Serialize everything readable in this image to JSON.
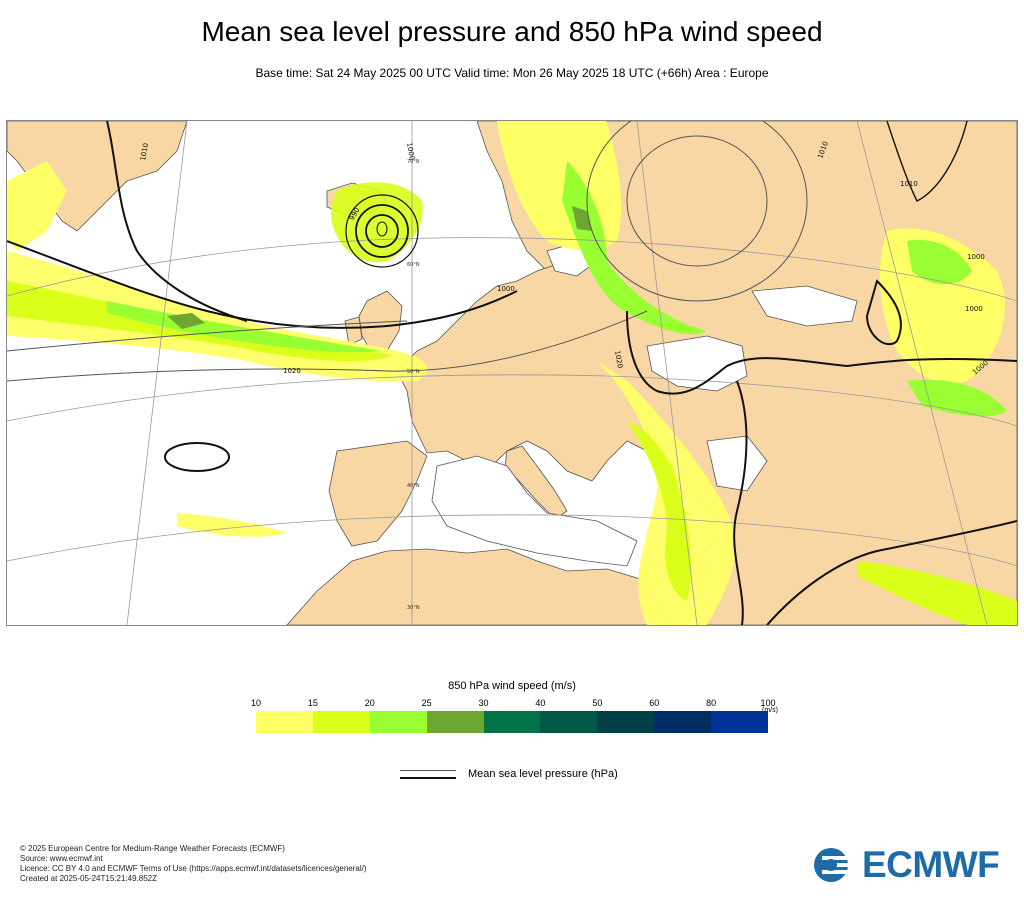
{
  "header": {
    "title": "Mean sea level pressure and 850 hPa wind speed",
    "subtitle": "Base time: Sat 24 May 2025 00 UTC Valid time: Mon 26 May 2025 18 UTC (+66h) Area : Europe"
  },
  "map": {
    "area": "Europe",
    "colors": {
      "land": "#f9d7a4",
      "sea": "#ffffff",
      "coast": "#555555",
      "graticule": "#9a9a9a",
      "isobar": "#111111"
    },
    "isobar_labels": [
      "1010",
      "1000",
      "990",
      "1020",
      "1000",
      "1020",
      "1010",
      "1010",
      "1000",
      "1000",
      "1000"
    ],
    "graticule_labels": [
      "70°N",
      "60°N",
      "50°N",
      "40°N",
      "30°N"
    ]
  },
  "legend": {
    "title": "850 hPa wind speed (m/s)",
    "unit": "(m/s)",
    "ticks": [
      "10",
      "15",
      "20",
      "25",
      "30",
      "40",
      "50",
      "60",
      "80",
      "100"
    ],
    "colors": [
      "#ffff66",
      "#d9ff1a",
      "#99ff33",
      "#6ea632",
      "#007347",
      "#005947",
      "#004046",
      "#002d66",
      "#003399"
    ],
    "isobar_label": "Mean sea level pressure (hPa)"
  },
  "footer": {
    "line1": "© 2025 European Centre for Medium-Range Weather Forecasts (ECMWF)",
    "line2": "Source: www.ecmwf.int",
    "line3": "Licence: CC BY 4.0 and ECMWF Terms of Use (https://apps.ecmwf.int/datasets/licences/general/)",
    "line4": "Created at 2025-05-24T15:21:49.852Z"
  },
  "logo": {
    "text": "ECMWF",
    "icon": "ecmwf-logo-icon"
  }
}
